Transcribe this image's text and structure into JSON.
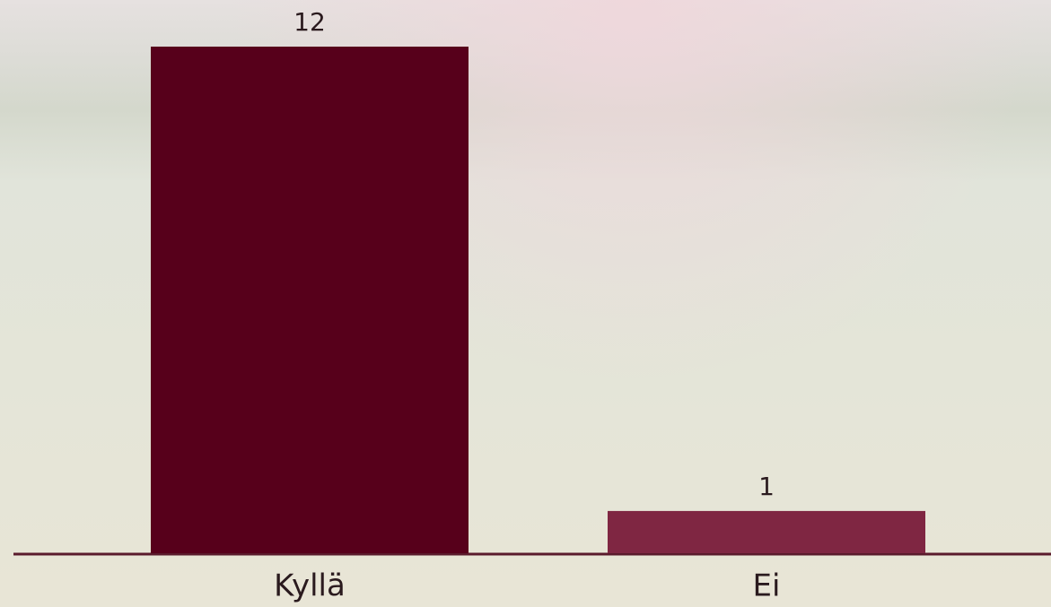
{
  "chart_data": {
    "type": "bar",
    "categories": [
      "Kyllä",
      "Ei"
    ],
    "values": [
      12,
      1
    ],
    "colors": [
      "#57001b",
      "#7f2642"
    ]
  }
}
